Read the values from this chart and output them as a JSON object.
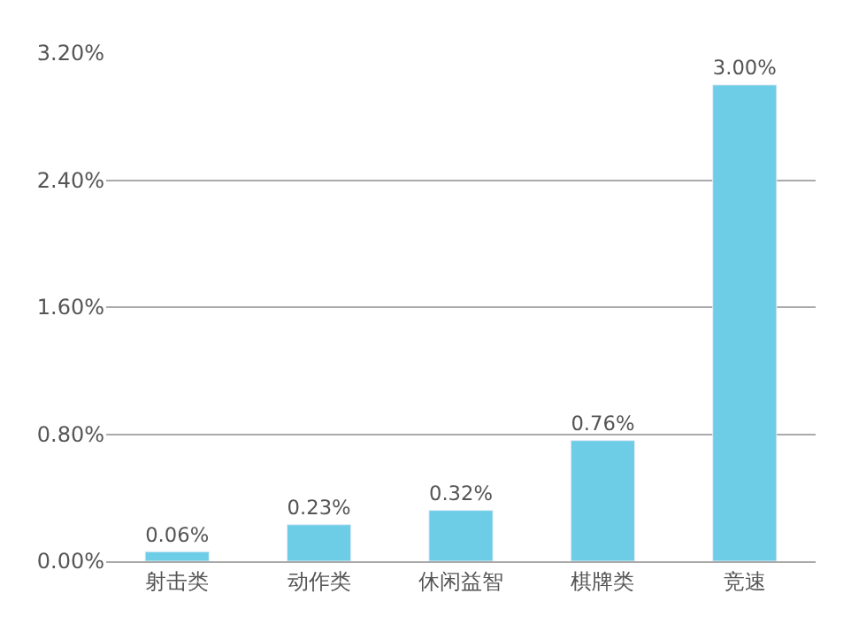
{
  "chart_data": {
    "type": "bar",
    "categories": [
      "射击类",
      "动作类",
      "休闲益智",
      "棋牌类",
      "竞速"
    ],
    "values": [
      0.06,
      0.23,
      0.32,
      0.76,
      3.0
    ],
    "value_labels": [
      "0.06%",
      "0.23%",
      "0.32%",
      "0.76%",
      "3.00%"
    ],
    "color": "#6ecde6",
    "ylim": [
      0,
      3.2
    ],
    "yticks": [
      {
        "value": 0,
        "label": "0.00%"
      },
      {
        "value": 0.8,
        "label": "0.80%"
      },
      {
        "value": 1.6,
        "label": "1.60%"
      },
      {
        "value": 2.4,
        "label": "2.40%"
      },
      {
        "value": 3.2,
        "label": "3.20%"
      }
    ],
    "grid": "y",
    "legend": false
  }
}
